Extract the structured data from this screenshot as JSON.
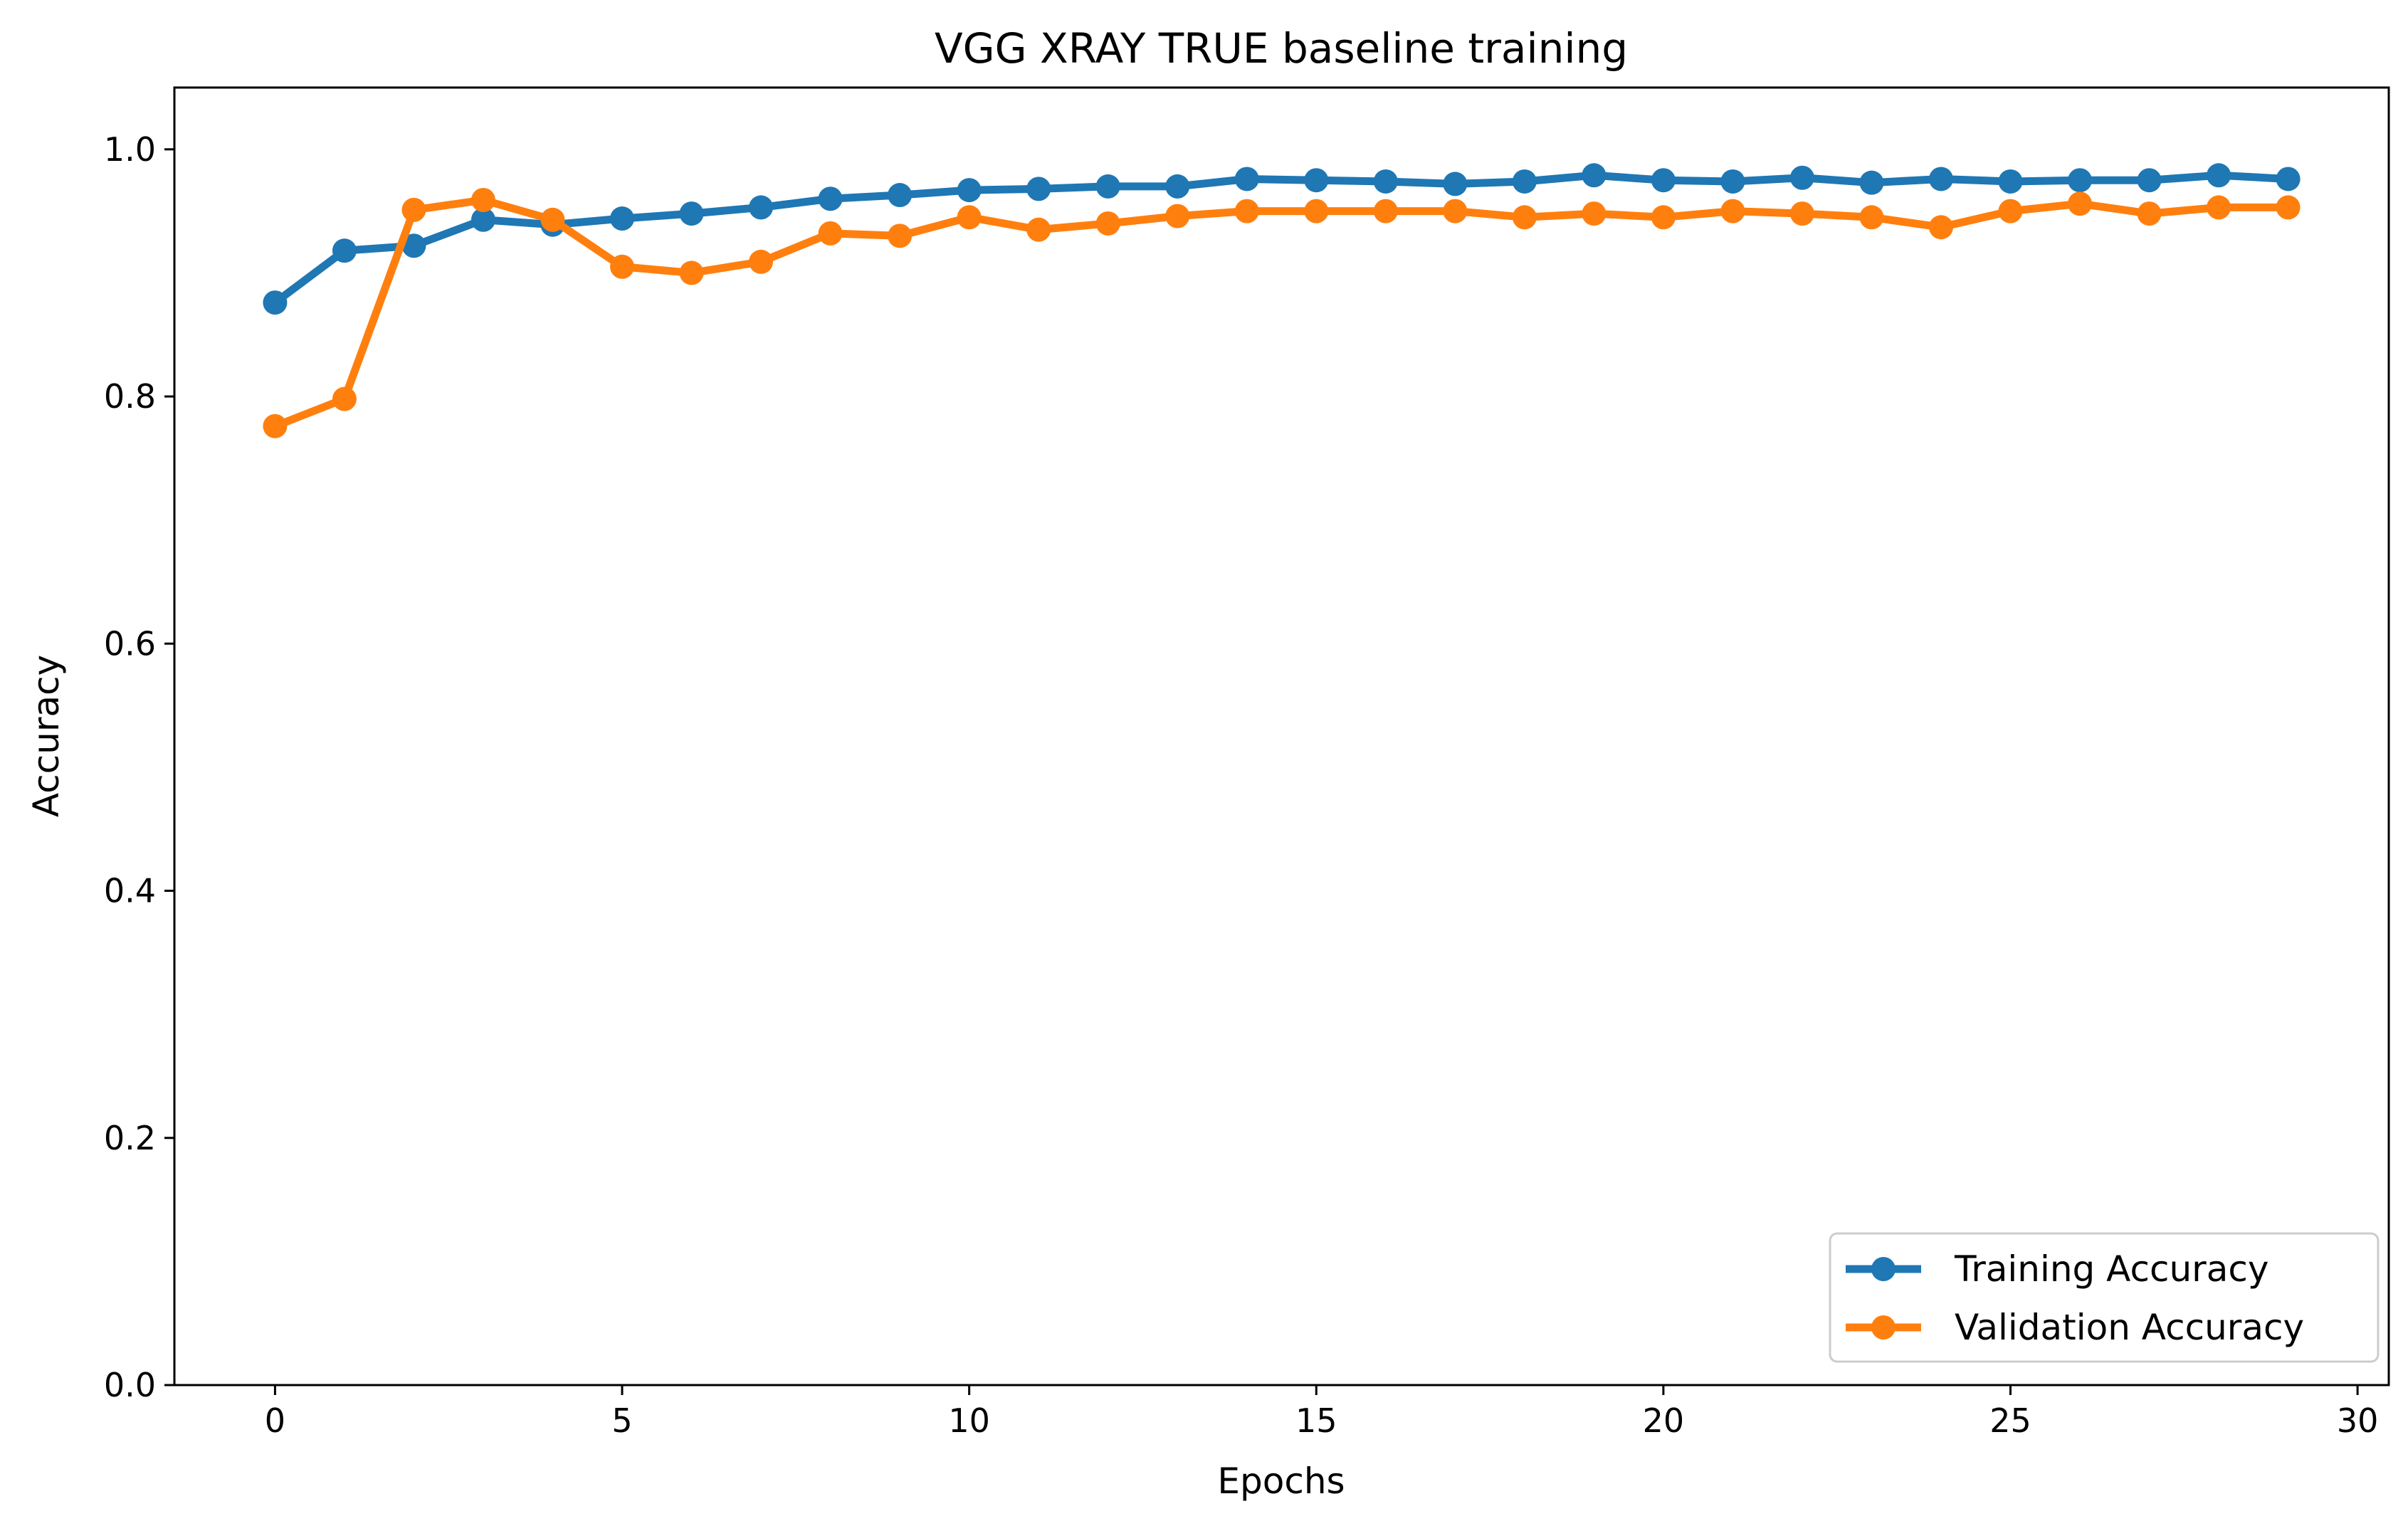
{
  "chart_data": {
    "type": "line",
    "title": "VGG XRAY TRUE baseline training",
    "xlabel": "Epochs",
    "ylabel": "Accuracy",
    "xlim": [
      -1.45,
      30.45
    ],
    "ylim": [
      0.0,
      1.05
    ],
    "xticks": [
      0,
      5,
      10,
      15,
      20,
      25,
      30
    ],
    "xtick_labels": [
      "0",
      "5",
      "10",
      "15",
      "20",
      "25",
      "30"
    ],
    "yticks": [
      0.0,
      0.2,
      0.4,
      0.6,
      0.8,
      1.0
    ],
    "ytick_labels": [
      "0.0",
      "0.2",
      "0.4",
      "0.6",
      "0.8",
      "1.0"
    ],
    "grid": false,
    "legend_position": "bottom-right",
    "x": [
      0,
      1,
      2,
      3,
      4,
      5,
      6,
      7,
      8,
      9,
      10,
      11,
      12,
      13,
      14,
      15,
      16,
      17,
      18,
      19,
      20,
      21,
      22,
      23,
      24,
      25,
      26,
      27,
      28,
      29
    ],
    "series": [
      {
        "name": "Training Accuracy",
        "color": "#1f77b4",
        "values": [
          0.876,
          0.918,
          0.922,
          0.943,
          0.939,
          0.944,
          0.948,
          0.953,
          0.96,
          0.963,
          0.967,
          0.968,
          0.97,
          0.97,
          0.976,
          0.975,
          0.974,
          0.972,
          0.974,
          0.979,
          0.975,
          0.974,
          0.977,
          0.973,
          0.976,
          0.974,
          0.975,
          0.975,
          0.979,
          0.976
        ]
      },
      {
        "name": "Validation Accuracy",
        "color": "#ff7f0e",
        "values": [
          0.776,
          0.798,
          0.951,
          0.959,
          0.943,
          0.905,
          0.9,
          0.909,
          0.932,
          0.93,
          0.945,
          0.935,
          0.94,
          0.946,
          0.95,
          0.95,
          0.95,
          0.95,
          0.945,
          0.948,
          0.945,
          0.95,
          0.948,
          0.945,
          0.937,
          0.95,
          0.956,
          0.948,
          0.953,
          0.953
        ]
      }
    ]
  }
}
